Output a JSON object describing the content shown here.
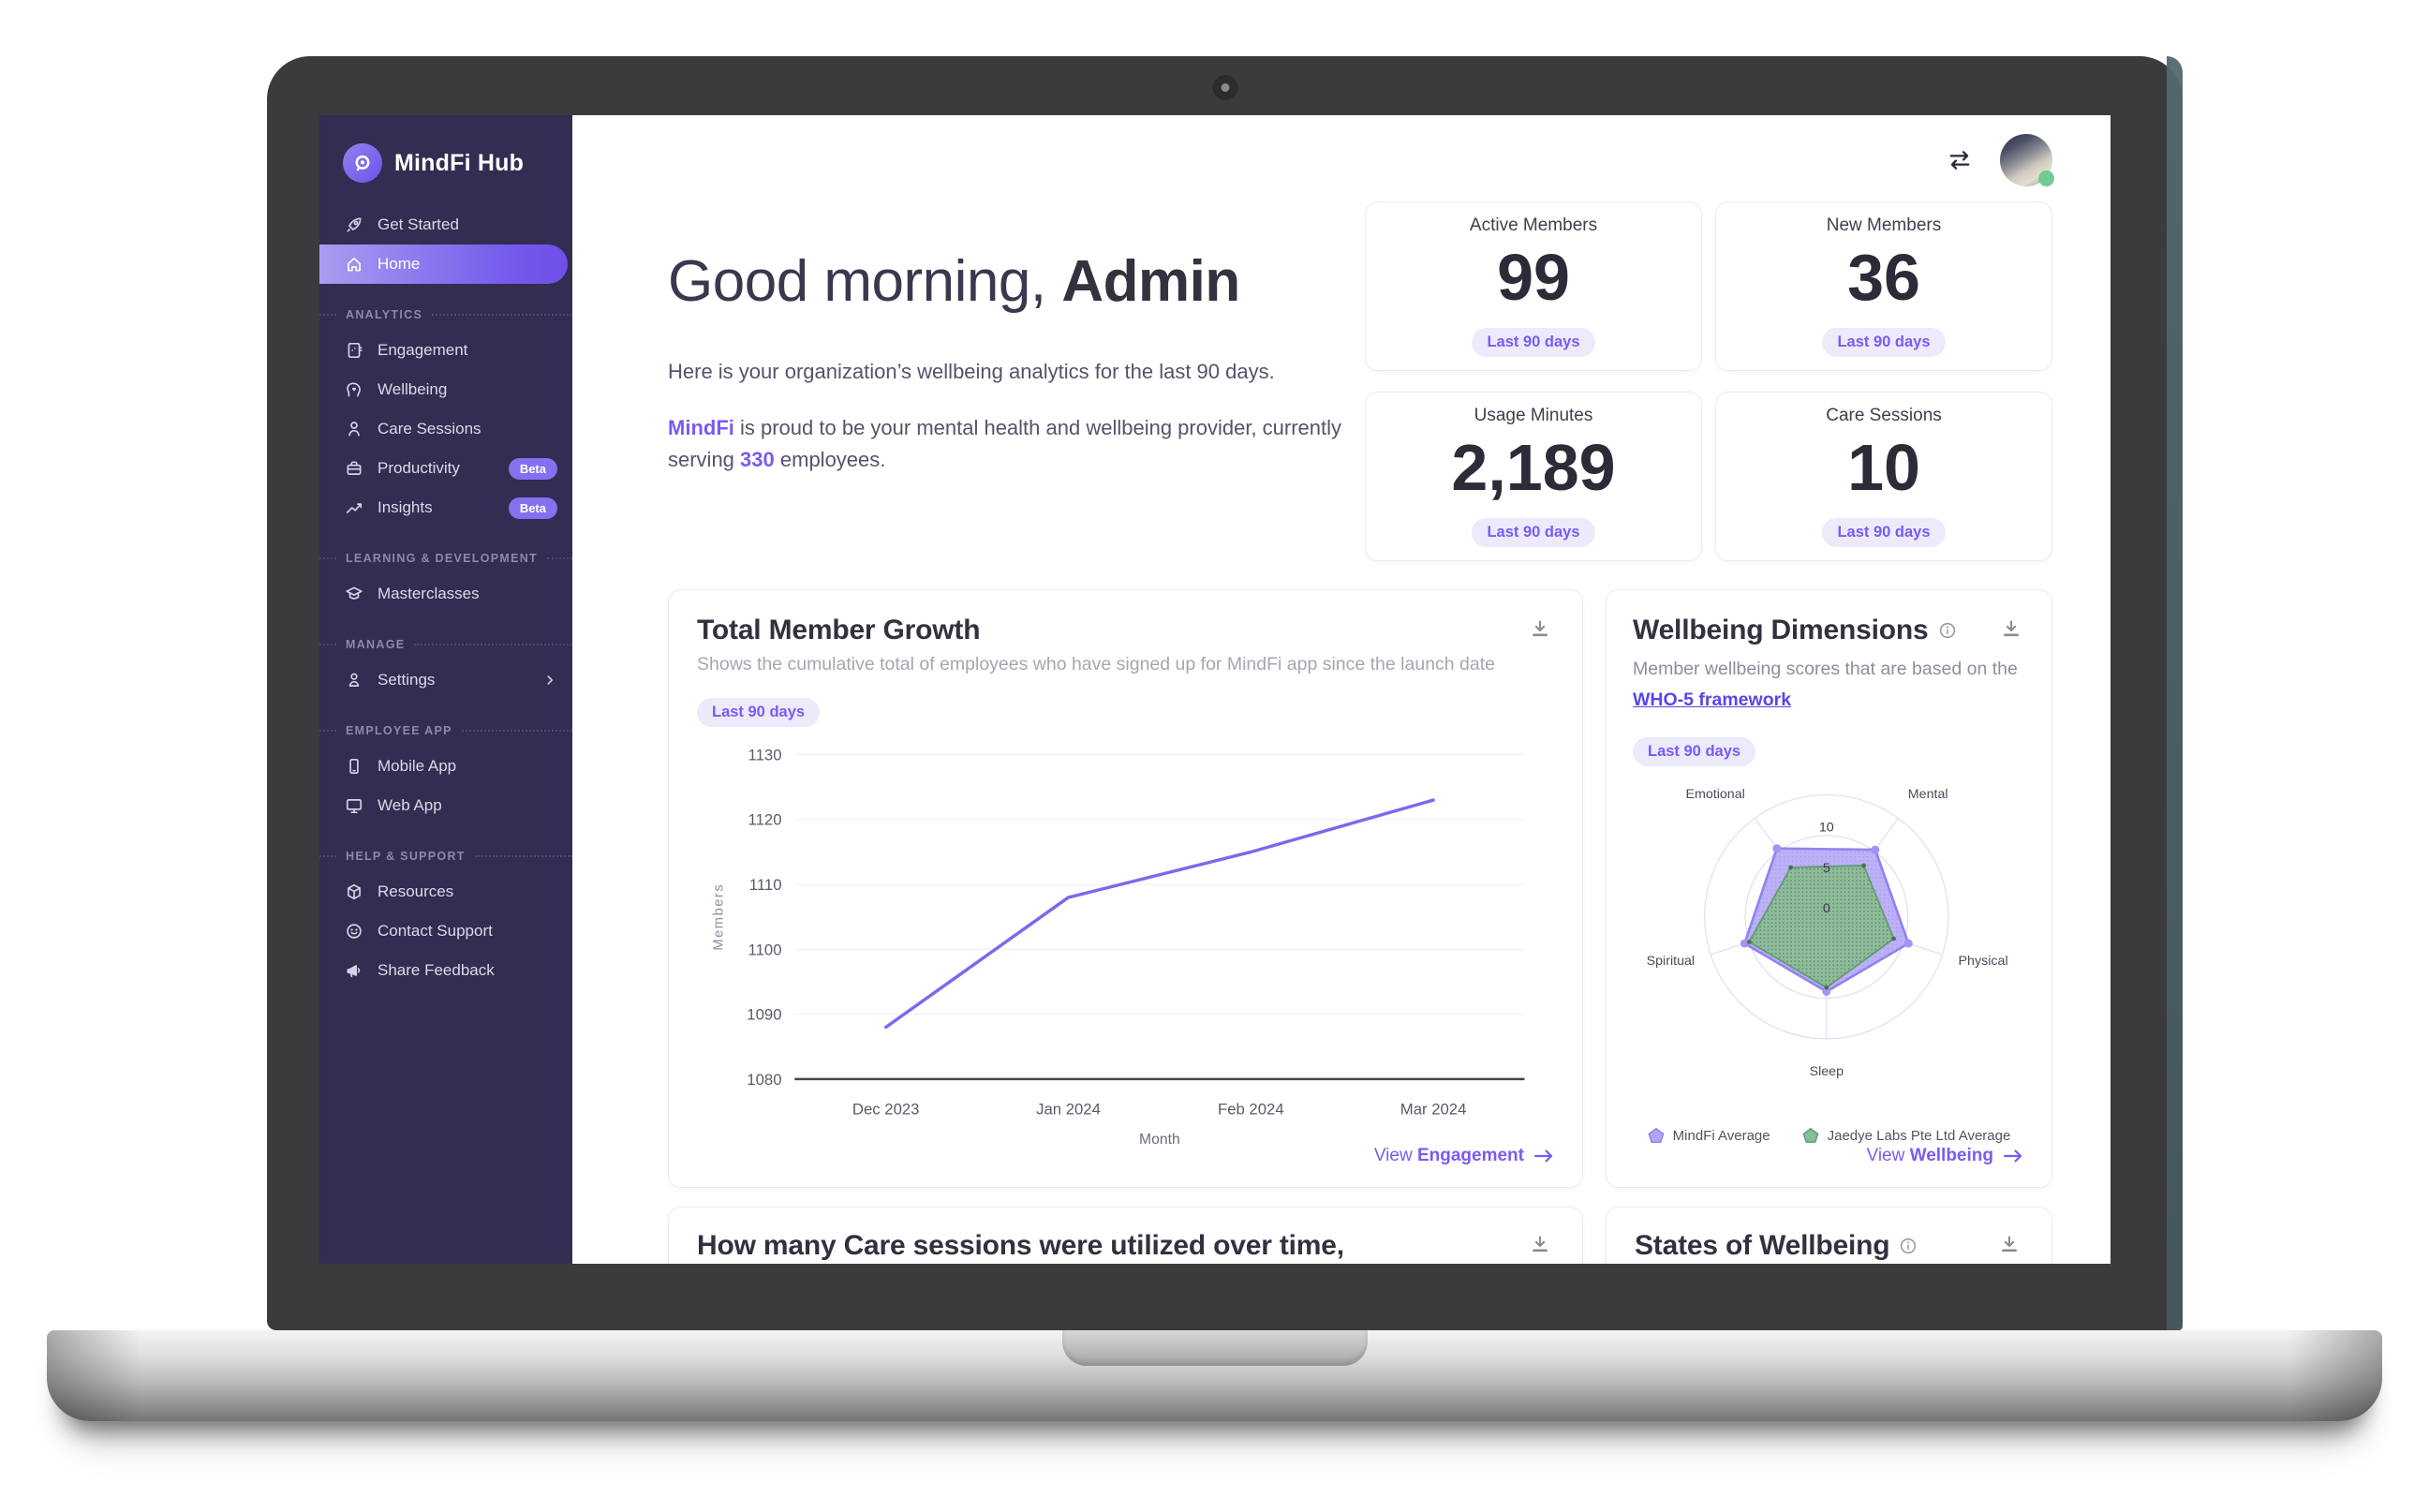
{
  "app": {
    "name": "MindFi Hub"
  },
  "sidebar": {
    "top": [
      {
        "label": "Get Started"
      },
      {
        "label": "Home"
      }
    ],
    "groups": [
      {
        "header": "ANALYTICS",
        "items": [
          {
            "label": "Engagement"
          },
          {
            "label": "Wellbeing"
          },
          {
            "label": "Care Sessions"
          },
          {
            "label": "Productivity",
            "badge": "Beta"
          },
          {
            "label": "Insights",
            "badge": "Beta"
          }
        ]
      },
      {
        "header": "LEARNING & DEVELOPMENT",
        "items": [
          {
            "label": "Masterclasses"
          }
        ]
      },
      {
        "header": "MANAGE",
        "items": [
          {
            "label": "Settings"
          }
        ]
      },
      {
        "header": "EMPLOYEE APP",
        "items": [
          {
            "label": "Mobile App"
          },
          {
            "label": "Web App"
          }
        ]
      },
      {
        "header": "HELP & SUPPORT",
        "items": [
          {
            "label": "Resources"
          },
          {
            "label": "Contact Support"
          },
          {
            "label": "Share Feedback"
          }
        ]
      }
    ]
  },
  "header": {
    "greeting": "Good morning,",
    "user": "Admin",
    "intro": "Here is your organization’s wellbeing analytics for the last 90 days.",
    "provider": {
      "brand": "MindFi",
      "mid": " is proud to be your mental health and wellbeing provider, currently serving ",
      "count": "330",
      "end": " employees."
    }
  },
  "stats": [
    {
      "label": "Active Members",
      "value": "99",
      "badge": "Last 90 days"
    },
    {
      "label": "New Members",
      "value": "36",
      "badge": "Last 90 days"
    },
    {
      "label": "Usage Minutes",
      "value": "2,189",
      "badge": "Last 90 days"
    },
    {
      "label": "Care Sessions",
      "value": "10",
      "badge": "Last 90 days"
    }
  ],
  "cards": {
    "growth": {
      "title": "Total Member Growth",
      "subtitle": "Shows the cumulative total of employees who have signed up for MindFi app since the launch date",
      "badge": "Last 90 days",
      "view_prefix": "View",
      "view_bold": "Engagement"
    },
    "wellbeing": {
      "title": "Wellbeing Dimensions",
      "subtitle": "Member wellbeing scores that are based on the",
      "link": "WHO-5 framework",
      "badge": "Last 90 days",
      "view_prefix": "View",
      "view_bold": "Wellbeing"
    },
    "care_sessions": {
      "title": "How many Care sessions were utilized over time, cumulatively?"
    },
    "states": {
      "title": "States of Wellbeing"
    }
  },
  "colors": {
    "accent": "#7b5af1",
    "sidebar_bg": "#322d51",
    "line": "#7b68ee",
    "badge_bg": "#edeafb",
    "radar_purple": "#b9adf6",
    "radar_green": "#8cbd98"
  },
  "chart_data": [
    {
      "type": "line",
      "title": "Total Member Growth",
      "x": [
        "Dec 2023",
        "Jan 2024",
        "Feb 2024",
        "Mar 2024"
      ],
      "series": [
        {
          "name": "Members",
          "values": [
            1088,
            1108,
            1115,
            1123
          ],
          "color": "#7b68ee"
        }
      ],
      "xlabel": "Month",
      "ylabel": "Members",
      "ylim": [
        1080,
        1130
      ],
      "ytick_step": 10,
      "grid": true,
      "legend": false
    },
    {
      "type": "radar",
      "title": "Wellbeing Dimensions",
      "indicators": [
        "Emotional",
        "Mental",
        "Physical",
        "Sleep",
        "Spiritual"
      ],
      "max": 15,
      "tick_labels": [
        0,
        5,
        10
      ],
      "legend_position": "bottom",
      "series": [
        {
          "name": "MindFi Average",
          "values": [
            10.4,
            10.2,
            10.6,
            9.2,
            10.6
          ],
          "stroke": "#9183f0",
          "fill": "#b9adf6"
        },
        {
          "name": "Jaedye Labs Pte Ltd Average",
          "values": [
            7.5,
            7.8,
            8.7,
            8.7,
            10.0
          ],
          "stroke": "#5f9c70",
          "fill": "#8cbd98"
        }
      ]
    }
  ]
}
